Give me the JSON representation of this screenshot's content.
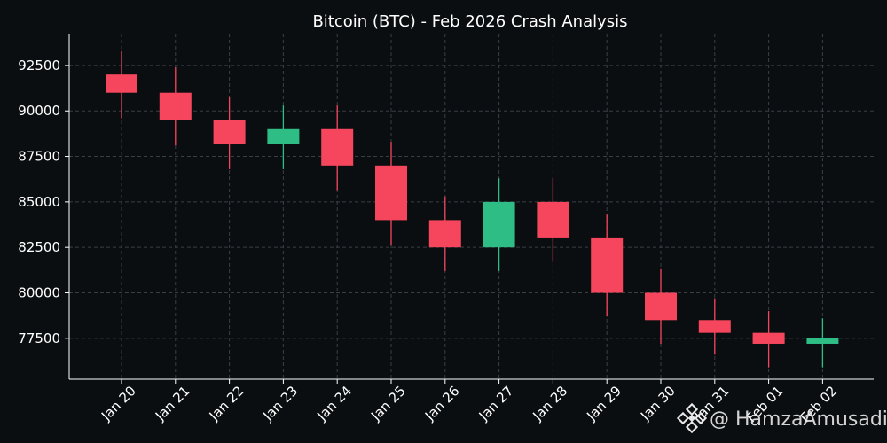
{
  "colors": {
    "background": "#0b0e11",
    "up": "#2ebd85",
    "down": "#f6465d",
    "grid": "#3a3f44",
    "axis": "#ffffff",
    "text": "#ffffff"
  },
  "watermark": {
    "icon": "binance-logo-icon",
    "text": "@ HamzaAmusadi"
  },
  "chart_data": {
    "type": "candlestick",
    "title": "Bitcoin (BTC) - Feb 2026 Crash Analysis",
    "xlabel": "",
    "ylabel": "",
    "ylim": [
      75250,
      94250
    ],
    "yticks": [
      77500,
      80000,
      82500,
      85000,
      87500,
      90000,
      92500
    ],
    "grid": true,
    "categories": [
      "Jan 20",
      "Jan 21",
      "Jan 22",
      "Jan 23",
      "Jan 24",
      "Jan 25",
      "Jan 26",
      "Jan 27",
      "Jan 28",
      "Jan 29",
      "Jan 30",
      "Jan 31",
      "Feb 01",
      "Feb 02"
    ],
    "series": [
      {
        "open": [
          92000,
          91000,
          89500,
          88200,
          89000,
          87000,
          84000,
          82500,
          85000,
          83000,
          80000,
          78500,
          77800,
          77200
        ],
        "high": [
          93300,
          92400,
          90800,
          90300,
          90300,
          88300,
          85300,
          86300,
          86300,
          84300,
          81300,
          79700,
          79000,
          78600
        ],
        "low": [
          89600,
          88100,
          86800,
          86800,
          85600,
          82600,
          81200,
          81200,
          81700,
          78700,
          77200,
          76600,
          75900,
          75900
        ],
        "close": [
          91000,
          89500,
          88200,
          89000,
          87000,
          84000,
          82500,
          85000,
          83000,
          80000,
          78500,
          77800,
          77200,
          77500
        ]
      }
    ]
  }
}
